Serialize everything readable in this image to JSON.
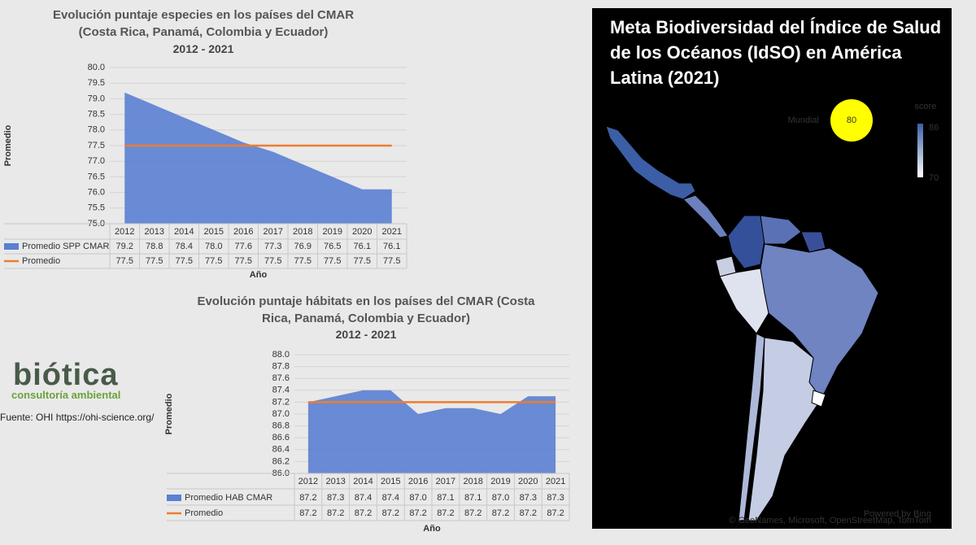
{
  "chart_data": [
    {
      "type": "area",
      "title": "Evolución puntaje especies en los países del CMAR (Costa Rica, Panamá, Colombia y Ecuador)",
      "subtitle": "2012 - 2021",
      "x_label": "Año",
      "y_label": "Promedio",
      "categories": [
        "2012",
        "2013",
        "2014",
        "2015",
        "2016",
        "2017",
        "2018",
        "2019",
        "2020",
        "2021"
      ],
      "series": [
        {
          "name": "Promedio SPP CMAR",
          "type": "area",
          "color": "#5b7fd1",
          "values": [
            79.2,
            78.8,
            78.4,
            78.0,
            77.6,
            77.3,
            76.9,
            76.5,
            76.1,
            76.1
          ],
          "value_labels": [
            "79.2",
            "78.8",
            "78.4",
            "78.0",
            "77.6",
            "77.3",
            "76.9",
            "76.5",
            "76.1",
            "76.1"
          ]
        },
        {
          "name": "Promedio",
          "type": "line",
          "color": "#ed7d31",
          "values": [
            77.5,
            77.5,
            77.5,
            77.5,
            77.5,
            77.5,
            77.5,
            77.5,
            77.5,
            77.5
          ],
          "value_labels": [
            "77.5",
            "77.5",
            "77.5",
            "77.5",
            "77.5",
            "77.5",
            "77.5",
            "77.5",
            "77.5",
            "77.5"
          ]
        }
      ],
      "ylim": [
        75,
        80
      ],
      "yticks": [
        {
          "value": 75,
          "label": "75.0"
        },
        {
          "value": 75.5,
          "label": "75.5"
        },
        {
          "value": 76,
          "label": "76.0"
        },
        {
          "value": 76.5,
          "label": "76.5"
        },
        {
          "value": 77,
          "label": "77.0"
        },
        {
          "value": 77.5,
          "label": "77.5"
        },
        {
          "value": 78,
          "label": "78.0"
        },
        {
          "value": 78.5,
          "label": "78.5"
        },
        {
          "value": 79,
          "label": "79.0"
        },
        {
          "value": 79.5,
          "label": "79.5"
        },
        {
          "value": 80,
          "label": "80.0"
        }
      ],
      "grid": true
    },
    {
      "type": "area",
      "title": "Evolución puntaje hábitats en los países del CMAR (Costa Rica, Panamá, Colombia y Ecuador)",
      "subtitle": "2012 - 2021",
      "x_label": "Año",
      "y_label": "Promedio",
      "categories": [
        "2012",
        "2013",
        "2014",
        "2015",
        "2016",
        "2017",
        "2018",
        "2019",
        "2020",
        "2021"
      ],
      "series": [
        {
          "name": "Promedio HAB CMAR",
          "type": "area",
          "color": "#5b7fd1",
          "values": [
            87.2,
            87.3,
            87.4,
            87.4,
            87.0,
            87.1,
            87.1,
            87.0,
            87.3,
            87.3
          ],
          "value_labels": [
            "87.2",
            "87.3",
            "87.4",
            "87.4",
            "87.0",
            "87.1",
            "87.1",
            "87.0",
            "87.3",
            "87.3"
          ]
        },
        {
          "name": "Promedio",
          "type": "line",
          "color": "#ed7d31",
          "values": [
            87.2,
            87.2,
            87.2,
            87.2,
            87.2,
            87.2,
            87.2,
            87.2,
            87.2,
            87.2
          ],
          "value_labels": [
            "87.2",
            "87.2",
            "87.2",
            "87.2",
            "87.2",
            "87.2",
            "87.2",
            "87.2",
            "87.2",
            "87.2"
          ]
        }
      ],
      "ylim": [
        86,
        88
      ],
      "yticks": [
        {
          "value": 86,
          "label": "86.0"
        },
        {
          "value": 86.2,
          "label": "86.2"
        },
        {
          "value": 86.4,
          "label": "86.4"
        },
        {
          "value": 86.6,
          "label": "86.6"
        },
        {
          "value": 86.8,
          "label": "86.8"
        },
        {
          "value": 87,
          "label": "87.0"
        },
        {
          "value": 87.2,
          "label": "87.2"
        },
        {
          "value": 87.4,
          "label": "87.4"
        },
        {
          "value": 87.6,
          "label": "87.6"
        },
        {
          "value": 87.8,
          "label": "87.8"
        },
        {
          "value": 88,
          "label": "88.0"
        }
      ],
      "grid": true
    }
  ],
  "map": {
    "title": "Meta Biodiversidad del Índice de Salud de los Océanos (IdSO) en América Latina (2021)",
    "global_label": "Mundial",
    "global_value": 80,
    "legend_title": "score",
    "scale_max": 86,
    "scale_min": 70,
    "powered": "Powered by Bing",
    "attribution": "© GeoNames, Microsoft, OpenStreetMap, TomTom"
  },
  "logo": {
    "name": "biótica",
    "tagline": "consultoría ambiental"
  },
  "source": "Fuente: OHI https://ohi-science.org/"
}
